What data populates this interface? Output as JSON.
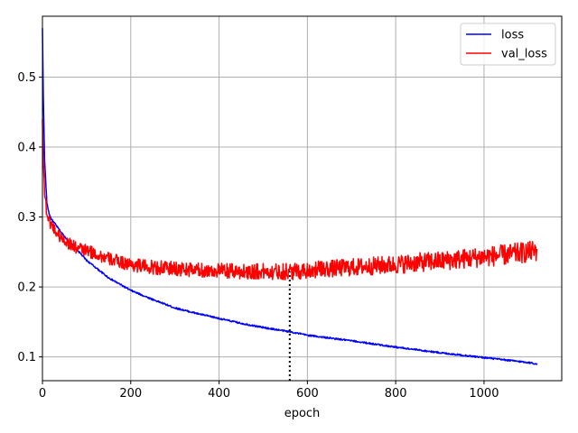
{
  "chart_data": {
    "type": "line",
    "title": "",
    "xlabel": "epoch",
    "ylabel": "",
    "xlim": [
      0,
      1176
    ],
    "ylim": [
      0.066,
      0.587
    ],
    "grid": true,
    "legend_position": "upper-right",
    "xticks": [
      0,
      200,
      400,
      600,
      800,
      1000
    ],
    "xtick_labels": [
      "0",
      "200",
      "400",
      "600",
      "800",
      "1000"
    ],
    "yticks": [
      0.1,
      0.2,
      0.3,
      0.4,
      0.5
    ],
    "ytick_labels": [
      "0.1",
      "0.2",
      "0.3",
      "0.4",
      "0.5"
    ],
    "series": [
      {
        "name": "loss",
        "color": "#0000ff",
        "x": [
          0,
          2,
          5,
          10,
          15,
          20,
          30,
          40,
          60,
          80,
          100,
          150,
          200,
          250,
          300,
          350,
          400,
          450,
          500,
          560,
          600,
          700,
          800,
          900,
          1000,
          1100,
          1120
        ],
        "y": [
          0.57,
          0.47,
          0.38,
          0.32,
          0.305,
          0.297,
          0.289,
          0.28,
          0.265,
          0.252,
          0.238,
          0.213,
          0.195,
          0.182,
          0.17,
          0.162,
          0.155,
          0.148,
          0.142,
          0.136,
          0.131,
          0.123,
          0.114,
          0.106,
          0.099,
          0.092,
          0.09
        ]
      },
      {
        "name": "val_loss",
        "color": "#ff0000",
        "x": [
          0,
          2,
          5,
          10,
          15,
          20,
          30,
          40,
          60,
          80,
          100,
          150,
          200,
          250,
          300,
          350,
          400,
          450,
          500,
          560,
          600,
          650,
          700,
          750,
          800,
          850,
          900,
          950,
          1000,
          1050,
          1100,
          1120
        ],
        "y": [
          0.44,
          0.38,
          0.335,
          0.305,
          0.295,
          0.29,
          0.28,
          0.272,
          0.262,
          0.255,
          0.252,
          0.24,
          0.232,
          0.228,
          0.226,
          0.224,
          0.223,
          0.222,
          0.222,
          0.222,
          0.224,
          0.226,
          0.228,
          0.23,
          0.232,
          0.235,
          0.237,
          0.24,
          0.243,
          0.246,
          0.25,
          0.252
        ]
      }
    ],
    "annotations": [
      {
        "type": "vertical-dotted-line",
        "x": 560,
        "y_from": 0.066,
        "y_to": 0.222,
        "color": "#000000"
      }
    ]
  }
}
